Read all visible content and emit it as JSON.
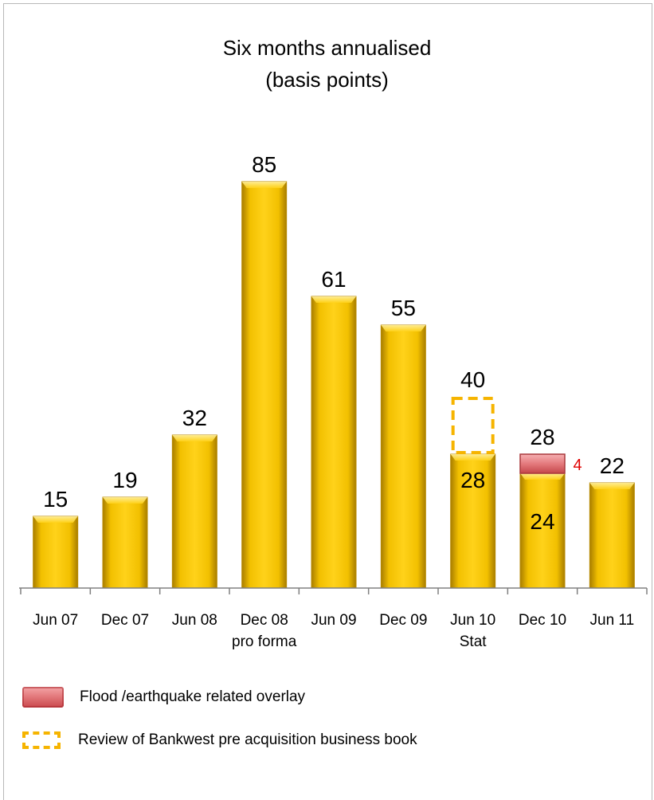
{
  "chart_data": {
    "type": "bar",
    "title": "Six months annualised",
    "subtitle": "(basis points)",
    "categories": [
      [
        "Jun 07"
      ],
      [
        "Dec 07"
      ],
      [
        "Jun 08"
      ],
      [
        "Dec 08",
        "pro forma"
      ],
      [
        "Jun 09"
      ],
      [
        "Dec 09"
      ],
      [
        "Jun 10",
        "Stat"
      ],
      [
        "Dec 10"
      ],
      [
        "Jun 11"
      ]
    ],
    "series": [
      {
        "name": "Base",
        "values": [
          15,
          19,
          32,
          85,
          61,
          55,
          28,
          24,
          22
        ]
      },
      {
        "name": "Flood /earthquake related overlay",
        "values": [
          0,
          0,
          0,
          0,
          0,
          0,
          0,
          4,
          0
        ]
      },
      {
        "name": "Review of Bankwest pre acquisition business book",
        "values": [
          0,
          0,
          0,
          0,
          0,
          0,
          12,
          0,
          0
        ]
      }
    ],
    "total_labels": [
      "15",
      "19",
      "32",
      "85",
      "61",
      "55",
      "40",
      "28",
      "22"
    ],
    "inner_labels": [
      "",
      "",
      "",
      "",
      "",
      "",
      "28",
      "24",
      ""
    ],
    "segment_labels": [
      "",
      "",
      "",
      "",
      "",
      "",
      "",
      "4",
      ""
    ],
    "ylim": [
      0,
      100
    ],
    "xlabel": "",
    "ylabel": "",
    "grid": false,
    "legend_placement": "bottom-left",
    "colors": {
      "bar": "#f5c400",
      "bar_dark": "#b88a00",
      "overlay": "#e47a7d",
      "dash": "#f6b400",
      "segment_label": "#e00000"
    }
  },
  "legend": {
    "flood_label": "Flood /earthquake related overlay",
    "review_label": "Review of Bankwest pre acquisition business book"
  }
}
